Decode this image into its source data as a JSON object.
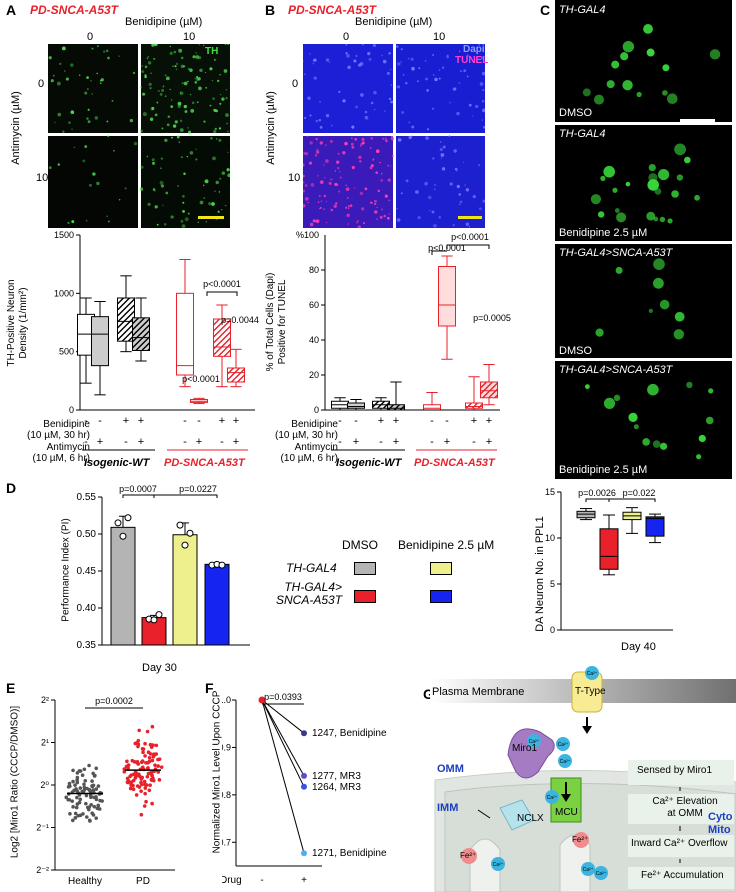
{
  "panelA": {
    "letter": "A",
    "genotype": "PD-SNCA-A53T",
    "drug_header": "Benidipine (µM)",
    "col0": "0",
    "col10": "10",
    "row_axis": "Antimycin (µM)",
    "row0": "0",
    "row10": "10",
    "stain": "TH"
  },
  "panelB": {
    "letter": "B",
    "genotype": "PD-SNCA-A53T",
    "drug_header": "Benidipine (µM)",
    "col0": "0",
    "col10": "10",
    "row_axis": "Antimycin (µM)",
    "row0": "0",
    "row10": "10",
    "stain1": "Dapi",
    "stain2": "TUNEL"
  },
  "panelC": {
    "letter": "C",
    "images": [
      {
        "genotype": "TH-GAL4",
        "treatment": "DMSO"
      },
      {
        "genotype": "TH-GAL4",
        "treatment": "Benidipine 2.5 µM"
      },
      {
        "genotype": "TH-GAL4>SNCA-A53T",
        "treatment": "DMSO"
      },
      {
        "genotype": "TH-GAL4>SNCA-A53T",
        "treatment": "Benidipine 2.5 µM"
      }
    ]
  },
  "chartA": {
    "ylabel_line1": "TH-Positive Neuron",
    "ylabel_line2": "Density (1/mm²)",
    "yticks": [
      "0",
      "500",
      "1000",
      "1500"
    ],
    "p_top": "p<0.0001",
    "p_mid": "p=0.0044",
    "p_low": "p<0.0001",
    "row1_line1": "Benidipine",
    "row1_line2": "(10 µM, 30 hr)",
    "row2_line1": "Antimycin",
    "row2_line2": "(10 µM, 6 hr)",
    "group1": "Isogenic-WT",
    "group2": "PD-SNCA-A53T",
    "signs_benidipine": [
      "-",
      "-",
      "+",
      "+",
      "-",
      "-",
      "+",
      "+"
    ],
    "signs_antimycin": [
      "-",
      "+",
      "-",
      "+",
      "-",
      "+",
      "-",
      "+"
    ]
  },
  "chartB": {
    "ylabel_line1": "% of Total Cells (Dapi)",
    "ylabel_line2": "Positive for TUNEL",
    "top_tick": "%100",
    "yticks": [
      "0",
      "20",
      "40",
      "60",
      "80"
    ],
    "p_top": "p<0.0001",
    "p_mid": "p<0.0001",
    "p_low": "p=0.0005",
    "row1_line1": "Benidipine",
    "row1_line2": "(10 µM, 30 hr)",
    "row2_line1": "Antimycin",
    "row2_line2": "(10 µM, 6 hr)",
    "group1": "Isogenic-WT",
    "group2": "PD-SNCA-A53T",
    "signs_benidipine": [
      "-",
      "-",
      "+",
      "+",
      "-",
      "-",
      "+",
      "+"
    ],
    "signs_antimycin": [
      "-",
      "+",
      "-",
      "+",
      "-",
      "+",
      "-",
      "+"
    ]
  },
  "panelD": {
    "letter": "D",
    "ylabel": "Performance Index (PI)",
    "yticks": [
      "0.35",
      "0.40",
      "0.45",
      "0.50",
      "0.55"
    ],
    "p1": "p=0.0007",
    "p2": "p=0.0227",
    "xlabel": "Day 30",
    "legend_dmso": "DMSO",
    "legend_beni": "Benidipine 2.5 µM",
    "legend_row1": "TH-GAL4",
    "legend_row2_l1": "TH-GAL4>",
    "legend_row2_l2": "SNCA-A53T"
  },
  "panelDright": {
    "ylabel": "DA Neuron No. in PPL1",
    "yticks": [
      "0",
      "5",
      "10",
      "15"
    ],
    "p1": "p=0.0026",
    "p2": "p=0.022",
    "xlabel": "Day 40"
  },
  "panelE": {
    "letter": "E",
    "ylabel": "Log2 [Miro1 Ratio (CCCP/DMSO)]",
    "yticks": [
      "2⁻²",
      "2⁻¹",
      "2⁰",
      "2¹",
      "2²"
    ],
    "p": "p=0.0002",
    "xlabels": [
      "Healthy",
      "PD"
    ]
  },
  "panelF": {
    "letter": "F",
    "ylabel": "Normalized Miro1 Level Upon CCCP",
    "yticks": [
      "0.7",
      "0.8",
      "0.9",
      "1.0"
    ],
    "p": "p=0.0393",
    "xaxis_label": "Drug",
    "xticks": [
      "-",
      "+"
    ],
    "labels": [
      "1247, Benidipine",
      "1277, MR3",
      "1264, MR3",
      "1271, Benidipine"
    ]
  },
  "panelG": {
    "letter": "G",
    "membrane": "Plasma Membrane",
    "ttype": "T-Type",
    "ca": "Ca²⁺",
    "miro1": "Miro1",
    "omm": "OMM",
    "imm": "IMM",
    "nclx": "NCLX",
    "mcu": "MCU",
    "fe": "Fe²⁺",
    "sensed": "Sensed by Miro1",
    "elev1": "Ca²⁺ Elevation",
    "elev2": "at OMM",
    "inward": "Inward Ca²⁺ Overflow",
    "accum": "Fe²⁺ Accumulation",
    "cyto": "Cyto",
    "mito": "Mito"
  },
  "chart_data": [
    {
      "type": "box",
      "ylabel": "TH-Positive Neuron Density (1/mm²)",
      "ylim": [
        0,
        1500
      ],
      "groups": [
        "Isogenic-WT",
        "PD-SNCA-A53T"
      ],
      "boxes": [
        {
          "min": 230,
          "q1": 470,
          "median": 650,
          "q3": 820,
          "max": 960
        },
        {
          "min": 130,
          "q1": 380,
          "median": 650,
          "q3": 800,
          "max": 930
        },
        {
          "min": 500,
          "q1": 590,
          "median": 760,
          "q3": 960,
          "max": 1150
        },
        {
          "min": 420,
          "q1": 510,
          "median": 620,
          "q3": 790,
          "max": 960
        },
        {
          "min": 200,
          "q1": 300,
          "median": 380,
          "q3": 1000,
          "max": 1290
        },
        {
          "min": 55,
          "q1": 65,
          "median": 75,
          "q3": 90,
          "max": 100
        },
        {
          "min": 200,
          "q1": 460,
          "median": 540,
          "q3": 780,
          "max": 900
        },
        {
          "min": 200,
          "q1": 240,
          "median": 320,
          "q3": 360,
          "max": 520
        }
      ]
    },
    {
      "type": "box",
      "ylabel": "% of Total Cells (Dapi) Positive for TUNEL",
      "ylim": [
        0,
        100
      ],
      "groups": [
        "Isogenic-WT",
        "PD-SNCA-A53T"
      ],
      "boxes": [
        {
          "min": 0,
          "q1": 1,
          "median": 3,
          "q3": 5,
          "max": 7
        },
        {
          "min": 0,
          "q1": 1,
          "median": 2,
          "q3": 4,
          "max": 6
        },
        {
          "min": 0,
          "q1": 1,
          "median": 3,
          "q3": 5,
          "max": 7
        },
        {
          "min": 0,
          "q1": 0,
          "median": 1,
          "q3": 3,
          "max": 16
        },
        {
          "min": 0,
          "q1": 0,
          "median": 1,
          "q3": 3,
          "max": 10
        },
        {
          "min": 29,
          "q1": 48,
          "median": 60,
          "q3": 82,
          "max": 88
        },
        {
          "min": 0,
          "q1": 1,
          "median": 2,
          "q3": 4,
          "max": 19
        },
        {
          "min": 3,
          "q1": 7,
          "median": 11,
          "q3": 16,
          "max": 26
        }
      ]
    },
    {
      "type": "bar",
      "ylabel": "Performance Index (PI)",
      "xlabel": "Day 30",
      "ylim": [
        0.35,
        0.55
      ],
      "categories": [
        "TH-GAL4 DMSO",
        "TH-GAL4>SNCA-A53T DMSO",
        "TH-GAL4 Benidipine",
        "TH-GAL4>SNCA-A53T Benidipine"
      ],
      "values": [
        0.509,
        0.387,
        0.499,
        0.459
      ],
      "errors": [
        0.015,
        0.003,
        0.016,
        0.002
      ],
      "colors": [
        "#b4b4b4",
        "#e8212b",
        "#eef08e",
        "#1524f0"
      ],
      "points": [
        [
          0.515,
          0.497,
          0.522
        ],
        [
          0.385,
          0.384,
          0.391
        ],
        [
          0.512,
          0.485,
          0.501
        ],
        [
          0.458,
          0.459,
          0.458
        ]
      ]
    },
    {
      "type": "box",
      "ylabel": "DA Neuron No. in PPL1",
      "xlabel": "Day 40",
      "ylim": [
        0,
        15
      ],
      "boxes": [
        {
          "min": 12,
          "q1": 12.2,
          "median": 12.6,
          "q3": 12.9,
          "max": 13.2
        },
        {
          "min": 6,
          "q1": 6.6,
          "median": 8,
          "q3": 11,
          "max": 12.5
        },
        {
          "min": 10.5,
          "q1": 12,
          "median": 12.4,
          "q3": 12.8,
          "max": 13.3
        },
        {
          "min": 9.5,
          "q1": 10.2,
          "median": 12.1,
          "q3": 12.3,
          "max": 12.6
        }
      ],
      "colors": [
        "#b4b4b4",
        "#e8212b",
        "#eef08e",
        "#1524f0"
      ]
    },
    {
      "type": "scatter",
      "ylabel": "Log2 [Miro1 Ratio (CCCP/DMSO)]",
      "categories": [
        "Healthy",
        "PD"
      ],
      "ylim": [
        -2,
        2
      ],
      "means": [
        -0.2,
        0.35
      ]
    },
    {
      "type": "line",
      "ylabel": "Normalized Miro1 Level Upon CCCP",
      "ylim": [
        0.65,
        1.0
      ],
      "x": [
        "-",
        "+"
      ],
      "series": [
        {
          "name": "1247, Benidipine",
          "values": [
            1.0,
            0.93
          ],
          "color": "#3a3a8c"
        },
        {
          "name": "1277, MR3",
          "values": [
            1.0,
            0.84
          ],
          "color": "#5a4fc8"
        },
        {
          "name": "1264, MR3",
          "values": [
            1.0,
            0.817
          ],
          "color": "#3a52e8"
        },
        {
          "name": "1271, Benidipine",
          "values": [
            1.0,
            0.677
          ],
          "color": "#4fb0f0"
        }
      ]
    }
  ]
}
